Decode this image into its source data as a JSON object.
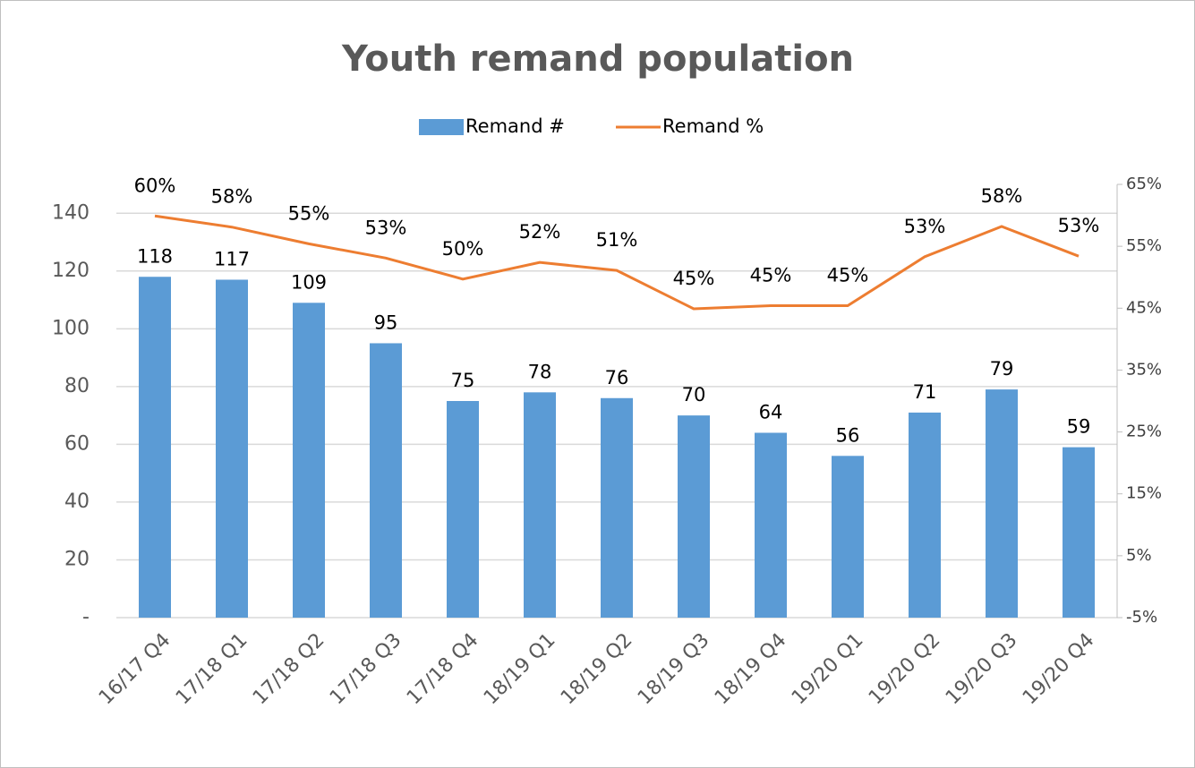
{
  "chart_data": {
    "type": "bar",
    "title": "Youth remand population",
    "categories": [
      "16/17 Q4",
      "17/18 Q1",
      "17/18 Q2",
      "17/18 Q3",
      "17/18 Q4",
      "18/19 Q1",
      "18/19 Q2",
      "18/19 Q3",
      "18/19 Q4",
      "19/20 Q1",
      "19/20 Q2",
      "19/20 Q3",
      "19/20 Q4"
    ],
    "series": [
      {
        "name": "Remand #",
        "type": "bar",
        "color": "#5b9bd5",
        "values": [
          118,
          117,
          109,
          95,
          75,
          78,
          76,
          70,
          64,
          56,
          71,
          79,
          59
        ]
      },
      {
        "name": "Remand %",
        "type": "line",
        "axis": "y2",
        "color": "#ed7d31",
        "values": [
          59.9,
          58.1,
          55.4,
          53.1,
          49.7,
          52.4,
          51.1,
          44.9,
          45.4,
          45.4,
          53.3,
          58.2,
          53.4
        ],
        "value_labels": [
          "60%",
          "58%",
          "55%",
          "53%",
          "50%",
          "52%",
          "51%",
          "45%",
          "45%",
          "45%",
          "53%",
          "58%",
          "53%"
        ]
      }
    ],
    "ylim": [
      0,
      150
    ],
    "yticks": [
      {
        "value": 0,
        "label": "-"
      },
      20,
      40,
      60,
      80,
      100,
      120,
      140
    ],
    "y2lim": [
      -5,
      65
    ],
    "y2ticks": [
      {
        "value": -5,
        "label": "-5%"
      },
      {
        "value": 5,
        "label": "5%"
      },
      {
        "value": 15,
        "label": "15%"
      },
      {
        "value": 25,
        "label": "25%"
      },
      {
        "value": 35,
        "label": "35%"
      },
      {
        "value": 45,
        "label": "45%"
      },
      {
        "value": 55,
        "label": "55%"
      },
      {
        "value": 65,
        "label": "65%"
      }
    ],
    "grid": true,
    "legend": "top"
  }
}
